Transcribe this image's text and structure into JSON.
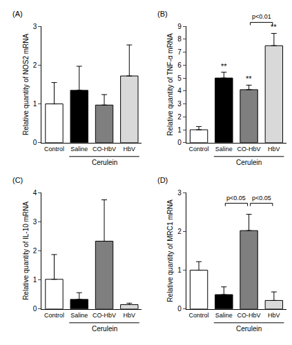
{
  "chart_data": [
    {
      "type": "bar",
      "title": "(A)",
      "y_label": "Relative quantity of NOS2 mRNA",
      "categories": [
        "Control",
        "Saline",
        "CO-HbV",
        "HbV"
      ],
      "values": [
        1.0,
        1.35,
        0.97,
        1.72
      ],
      "errors": [
        0.55,
        0.62,
        0.27,
        0.8
      ],
      "colors": [
        "#ffffff",
        "#000000",
        "#7f7f7f",
        "#d9d9d9"
      ],
      "ylim": [
        0,
        3
      ],
      "yticks": [
        0,
        1,
        2,
        3
      ],
      "grid": false,
      "significance": [],
      "brackets": [],
      "group_label": {
        "text": "Cerulein",
        "categories": [
          "Saline",
          "CO-HbV",
          "HbV"
        ]
      }
    },
    {
      "type": "bar",
      "title": "(B)",
      "y_label": "Relative quantity of TNF-α mRNA",
      "categories": [
        "Control",
        "Saline",
        "CO-HbV",
        "HbV"
      ],
      "values": [
        1.0,
        5.0,
        4.1,
        7.5
      ],
      "errors": [
        0.25,
        0.45,
        0.35,
        0.95
      ],
      "colors": [
        "#ffffff",
        "#000000",
        "#7f7f7f",
        "#d9d9d9"
      ],
      "ylim": [
        0,
        9
      ],
      "yticks": [
        0,
        1,
        2,
        3,
        4,
        5,
        6,
        7,
        8,
        9
      ],
      "grid": false,
      "significance": [
        {
          "category": "Saline",
          "text": "**"
        },
        {
          "category": "CO-HbV",
          "text": "**"
        },
        {
          "category": "HbV",
          "text": "**"
        }
      ],
      "brackets": [
        {
          "from": "CO-HbV",
          "to": "HbV",
          "text": "p<0.01"
        }
      ],
      "group_label": {
        "text": "Cerulein",
        "categories": [
          "Saline",
          "CO-HbV",
          "HbV"
        ]
      }
    },
    {
      "type": "bar",
      "title": "(C)",
      "y_label": "Relative quantity of IL-10 mRNA",
      "categories": [
        "Control",
        "Saline",
        "CO-HbV",
        "HbV"
      ],
      "values": [
        1.02,
        0.33,
        2.33,
        0.15
      ],
      "errors": [
        0.85,
        0.23,
        1.42,
        0.05
      ],
      "colors": [
        "#ffffff",
        "#000000",
        "#7f7f7f",
        "#d9d9d9"
      ],
      "ylim": [
        0,
        4
      ],
      "yticks": [
        0,
        1,
        2,
        3,
        4
      ],
      "grid": false,
      "significance": [],
      "brackets": [],
      "group_label": {
        "text": "Cerulein",
        "categories": [
          "Saline",
          "CO-HbV",
          "HbV"
        ]
      }
    },
    {
      "type": "bar",
      "title": "(D)",
      "y_label": "Relative quantity of MRC1 mRNA",
      "categories": [
        "Control",
        "Saline",
        "CO-HbV",
        "HbV"
      ],
      "values": [
        1.0,
        0.37,
        2.02,
        0.22
      ],
      "errors": [
        0.22,
        0.2,
        0.42,
        0.22
      ],
      "colors": [
        "#ffffff",
        "#000000",
        "#7f7f7f",
        "#d9d9d9"
      ],
      "ylim": [
        0,
        3
      ],
      "yticks": [
        0,
        1,
        2,
        3
      ],
      "grid": false,
      "significance": [],
      "brackets": [
        {
          "from": "Saline",
          "to": "CO-HbV",
          "text": "p<0.05"
        },
        {
          "from": "CO-HbV",
          "to": "HbV",
          "text": "p<0.05"
        }
      ],
      "group_label": {
        "text": "Cerulein",
        "categories": [
          "Saline",
          "CO-HbV",
          "HbV"
        ]
      }
    }
  ]
}
